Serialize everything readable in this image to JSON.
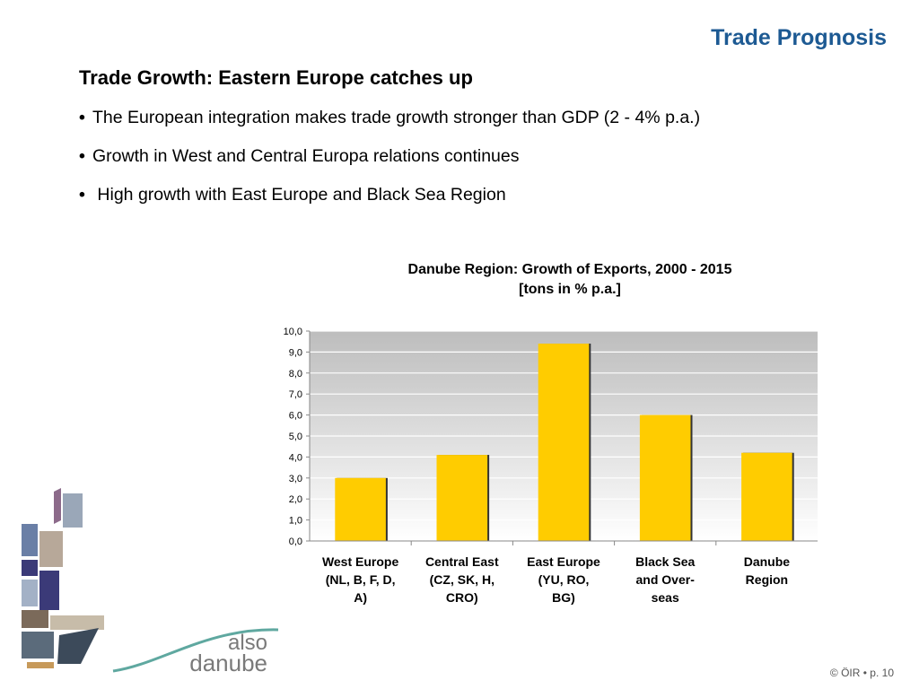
{
  "slide": {
    "title": "Trade Prognosis",
    "subtitle": "Trade Growth: Eastern Europe catches up",
    "bullets": [
      "The European integration makes trade growth stronger than GDP (2 - 4% p.a.)",
      "Growth in West and Central Europa relations continues",
      " High growth with East Europe and Black Sea Region"
    ],
    "bullet_glyph": "•"
  },
  "logo": {
    "text_line1": "also",
    "text_line2": "danube"
  },
  "footer": {
    "text": "© ÖIR • p. 10"
  },
  "chart_data": {
    "type": "bar",
    "title": "Danube Region: Growth of Exports, 2000 - 2015",
    "subtitle": "[tons in % p.a.]",
    "categories": [
      [
        "West Europe",
        "(NL, B, F, D,",
        "A)"
      ],
      [
        "Central East",
        "(CZ, SK, H,",
        "CRO)"
      ],
      [
        "East Europe",
        "(YU, RO,",
        "BG)"
      ],
      [
        "Black Sea",
        "and Over-",
        "seas"
      ],
      [
        "Danube",
        "Region"
      ]
    ],
    "values": [
      3.0,
      4.1,
      9.4,
      6.0,
      4.2
    ],
    "yticks": [
      "0,0",
      "1,0",
      "2,0",
      "3,0",
      "4,0",
      "5,0",
      "6,0",
      "7,0",
      "8,0",
      "9,0",
      "10,0"
    ],
    "ylim": [
      0,
      10
    ],
    "grid": true,
    "legend": "none",
    "colors": {
      "bar": "#ffcc00",
      "bar_edge": "#333333",
      "grid": "#ffffff",
      "plot_top": "#bdbdbd",
      "plot_bottom": "#ffffff"
    }
  }
}
